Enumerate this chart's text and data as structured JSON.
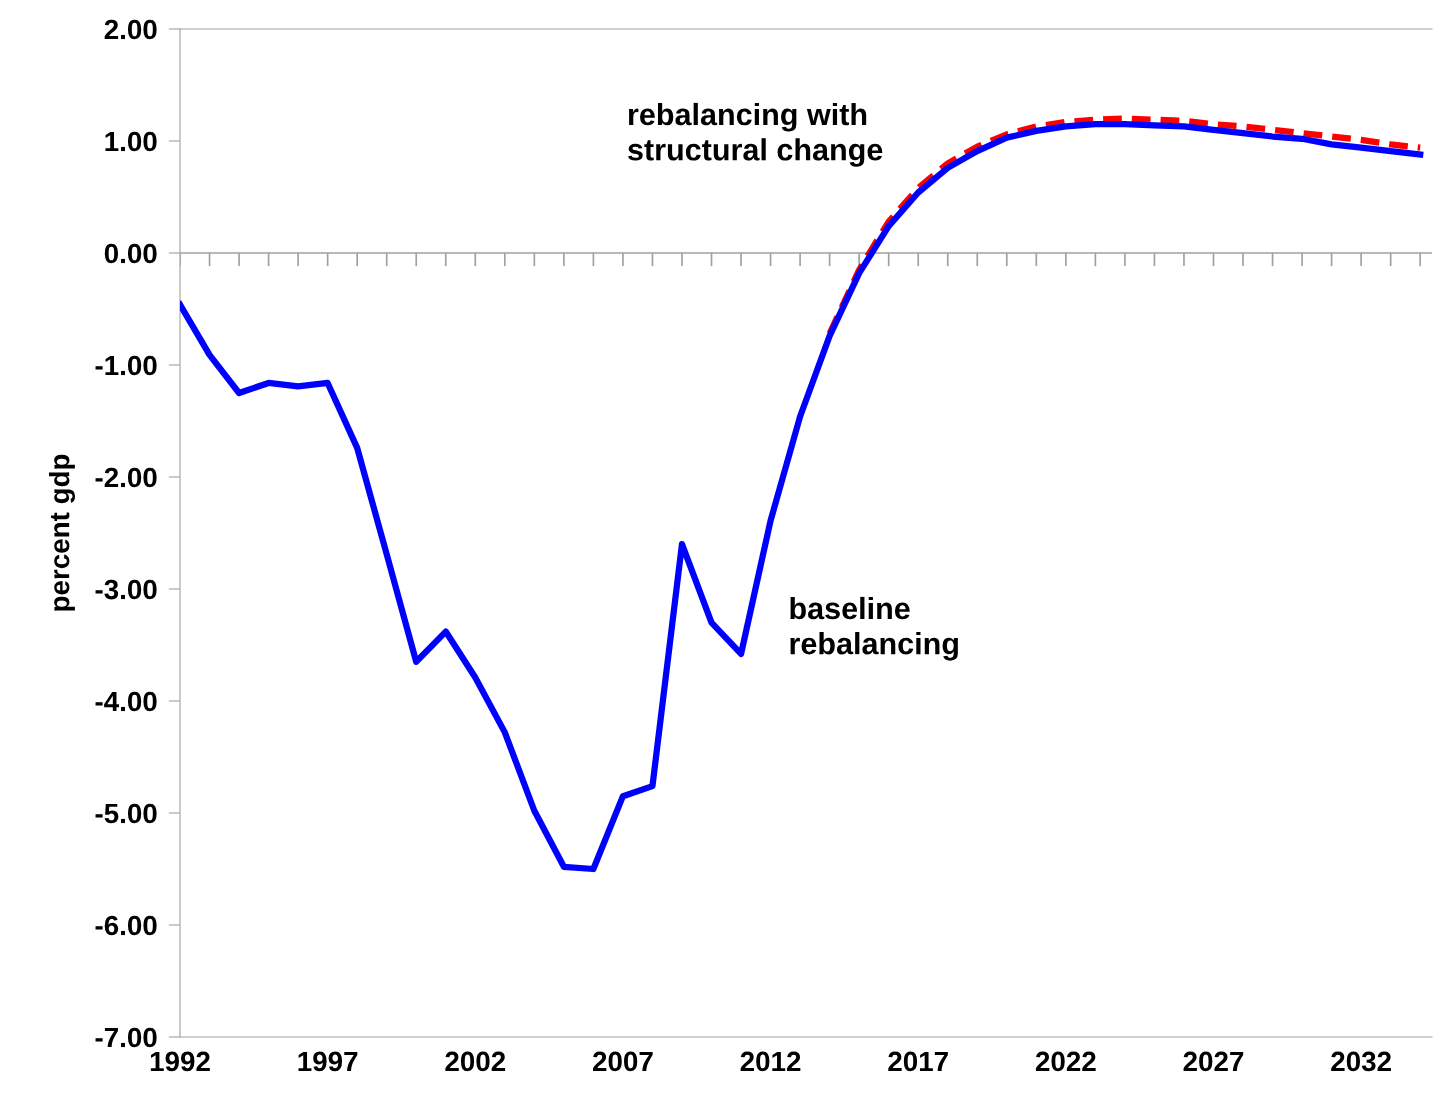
{
  "chart_data": {
    "type": "line",
    "ylabel": "percent gdp",
    "xlim": [
      1992,
      2034.4
    ],
    "xticks": [
      1992,
      {
        "value": 1993,
        "label": null
      },
      {
        "value": 1994,
        "label": null
      },
      {
        "value": 1995,
        "label": null
      },
      {
        "value": 1996,
        "label": null
      },
      1997,
      {
        "value": 1998,
        "label": null
      },
      {
        "value": 1999,
        "label": null
      },
      {
        "value": 2000,
        "label": null
      },
      {
        "value": 2001,
        "label": null
      },
      2002,
      {
        "value": 2003,
        "label": null
      },
      {
        "value": 2004,
        "label": null
      },
      {
        "value": 2005,
        "label": null
      },
      {
        "value": 2006,
        "label": null
      },
      2007,
      {
        "value": 2008,
        "label": null
      },
      {
        "value": 2009,
        "label": null
      },
      {
        "value": 2010,
        "label": null
      },
      {
        "value": 2011,
        "label": null
      },
      2012,
      {
        "value": 2013,
        "label": null
      },
      {
        "value": 2014,
        "label": null
      },
      {
        "value": 2015,
        "label": null
      },
      {
        "value": 2016,
        "label": null
      },
      2017,
      {
        "value": 2018,
        "label": null
      },
      {
        "value": 2019,
        "label": null
      },
      {
        "value": 2020,
        "label": null
      },
      {
        "value": 2021,
        "label": null
      },
      2022,
      {
        "value": 2023,
        "label": null
      },
      {
        "value": 2024,
        "label": null
      },
      {
        "value": 2025,
        "label": null
      },
      {
        "value": 2026,
        "label": null
      },
      2027,
      {
        "value": 2028,
        "label": null
      },
      {
        "value": 2029,
        "label": null
      },
      {
        "value": 2030,
        "label": null
      },
      {
        "value": 2031,
        "label": null
      },
      2032,
      {
        "value": 2033,
        "label": null
      },
      {
        "value": 2034,
        "label": null
      }
    ],
    "ylim": [
      -7,
      2
    ],
    "yticks": [
      {
        "value": -7,
        "label": "-7.00"
      },
      {
        "value": -6,
        "label": "-6.00"
      },
      {
        "value": -5,
        "label": "-5.00"
      },
      {
        "value": -4,
        "label": "-4.00"
      },
      {
        "value": -3,
        "label": "-3.00"
      },
      {
        "value": -2,
        "label": "-2.00"
      },
      {
        "value": -1,
        "label": "-1.00"
      },
      {
        "value": 0,
        "label": "0.00"
      },
      {
        "value": 1,
        "label": "1.00"
      },
      {
        "value": 2,
        "label": "2.00"
      }
    ],
    "ref_lines": [
      {
        "axis": "y",
        "value": 0,
        "label": null,
        "color": "#a0a0a0"
      }
    ],
    "grid": false,
    "legend": false,
    "annotations": [
      "rebalancing with\nstructural change",
      "baseline\nrebalancing"
    ],
    "series": [
      {
        "color": "#ff0000",
        "line_style": "dashed",
        "x": [
          2014,
          2015,
          2016,
          2017,
          2018,
          2019,
          2020,
          2021,
          2022,
          2023,
          2024,
          2025,
          2026,
          2027,
          2028,
          2029,
          2030,
          2031,
          2032,
          2033,
          2034
        ],
        "values": [
          -0.72,
          -0.15,
          0.28,
          0.58,
          0.8,
          0.95,
          1.06,
          1.13,
          1.17,
          1.19,
          1.2,
          1.19,
          1.18,
          1.15,
          1.13,
          1.1,
          1.07,
          1.04,
          1.01,
          0.97,
          0.94
        ]
      },
      {
        "color": "#0000ff",
        "line_style": "solid",
        "x": [
          1992,
          1993,
          1994,
          1995,
          1996,
          1997,
          1998,
          1999,
          2000,
          2001,
          2002,
          2003,
          2004,
          2005,
          2006,
          2007,
          2008,
          2009,
          2010,
          2011,
          2012,
          2013,
          2014,
          2015,
          2016,
          2017,
          2018,
          2019,
          2020,
          2021,
          2022,
          2023,
          2024,
          2025,
          2026,
          2027,
          2028,
          2029,
          2030,
          2031,
          2032,
          2033,
          2034
        ],
        "values": [
          -0.46,
          -0.91,
          -1.25,
          -1.16,
          -1.19,
          -1.16,
          -1.74,
          -2.69,
          -3.65,
          -3.38,
          -3.79,
          -4.28,
          -4.98,
          -5.48,
          -5.5,
          -4.85,
          -4.76,
          -2.6,
          -3.3,
          -3.58,
          -2.39,
          -1.46,
          -0.74,
          -0.18,
          0.24,
          0.54,
          0.76,
          0.91,
          1.03,
          1.09,
          1.13,
          1.15,
          1.15,
          1.14,
          1.13,
          1.1,
          1.07,
          1.04,
          1.02,
          0.97,
          0.94,
          0.91,
          0.88
        ]
      }
    ]
  }
}
